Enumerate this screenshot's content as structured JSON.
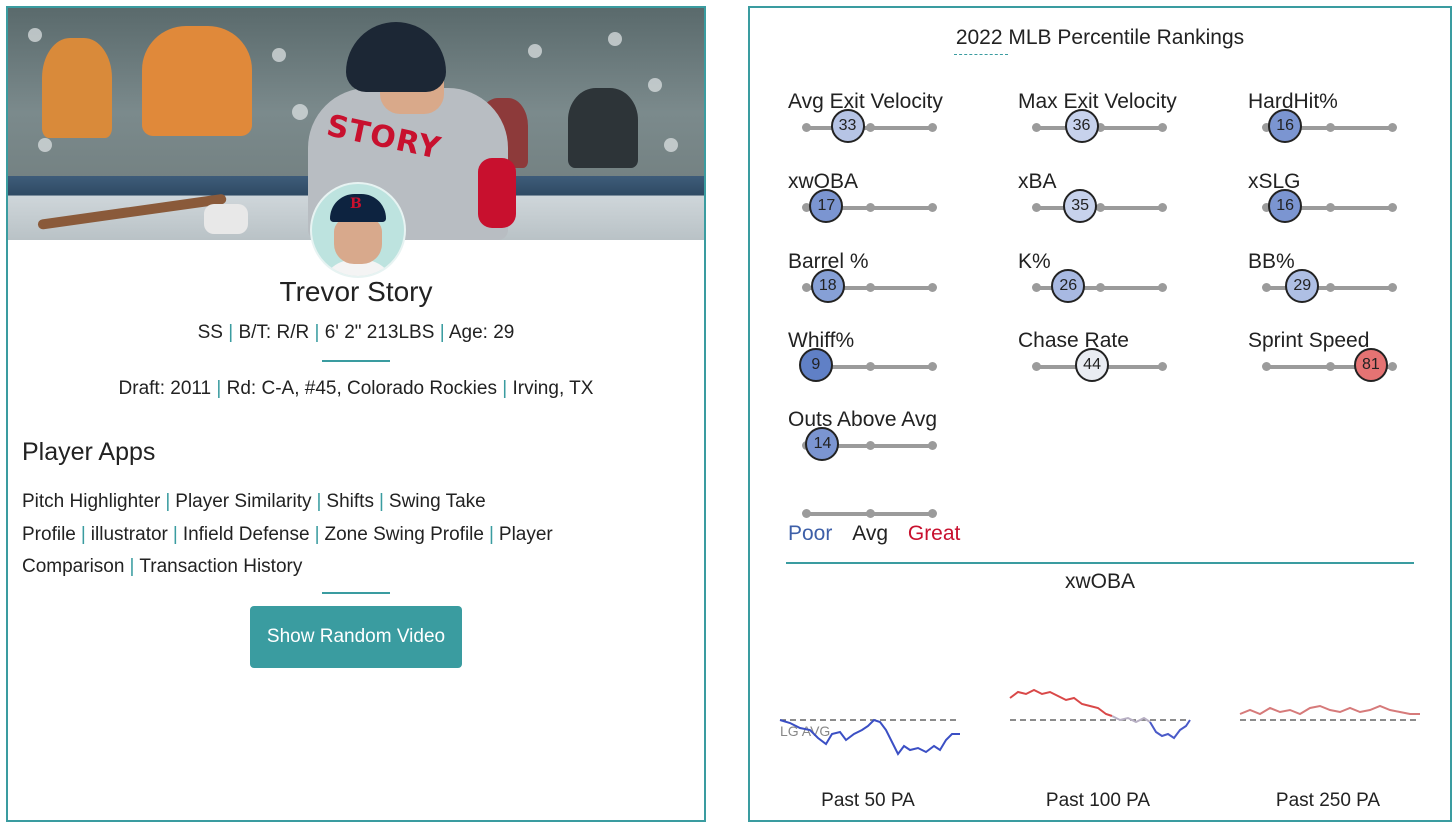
{
  "player": {
    "name": "Trevor Story",
    "position": "SS",
    "bats_throws": "B/T: R/R",
    "height_weight": "6' 2\" 213LBS",
    "age": "Age: 29",
    "draft_label": "Draft:",
    "draft_year": "2011",
    "round_pick": "Rd: C-A, #45,",
    "draft_team": "Colorado Rockies",
    "hometown": "Irving, TX",
    "jersey_name": "STORY"
  },
  "apps": {
    "title": "Player Apps",
    "links": [
      "Pitch Highlighter",
      "Player Similarity",
      "Shifts",
      "Swing Take Profile",
      "illustrator",
      "Infield Defense",
      "Zone Swing Profile",
      "Player Comparison",
      "Transaction History"
    ]
  },
  "button": {
    "label": "Show Random Video"
  },
  "rankings": {
    "title": "2022 MLB Percentile Rankings",
    "metrics": [
      {
        "label": "Avg Exit Velocity",
        "value": 33,
        "color": "#b6c4e5"
      },
      {
        "label": "Max Exit Velocity",
        "value": 36,
        "color": "#c7d2ec"
      },
      {
        "label": "HardHit%",
        "value": 16,
        "color": "#7b95d1"
      },
      {
        "label": "xwOBA",
        "value": 17,
        "color": "#7b95d1"
      },
      {
        "label": "xBA",
        "value": 35,
        "color": "#c7d2ec"
      },
      {
        "label": "xSLG",
        "value": 16,
        "color": "#7b95d1"
      },
      {
        "label": "Barrel %",
        "value": 18,
        "color": "#86a0d6"
      },
      {
        "label": "K%",
        "value": 26,
        "color": "#a8b9e2"
      },
      {
        "label": "BB%",
        "value": 29,
        "color": "#aebfe4"
      },
      {
        "label": "Whiff%",
        "value": 9,
        "color": "#6080c6"
      },
      {
        "label": "Chase Rate",
        "value": 44,
        "color": "#e9ecf2"
      },
      {
        "label": "Sprint Speed",
        "value": 81,
        "color": "#e57373"
      },
      {
        "label": "Outs Above Avg",
        "value": 14,
        "color": "#7b95d1"
      }
    ],
    "legend": {
      "poor": "Poor",
      "avg": "Avg",
      "great": "Great",
      "poor_color": "#3d5fa8",
      "great_color": "#c8102e"
    }
  },
  "xwoba_chart": {
    "title": "xwOBA",
    "lg_avg_label": "LG AVG",
    "windows": [
      "Past 50 PA",
      "Past 100 PA",
      "Past 250 PA"
    ]
  }
}
